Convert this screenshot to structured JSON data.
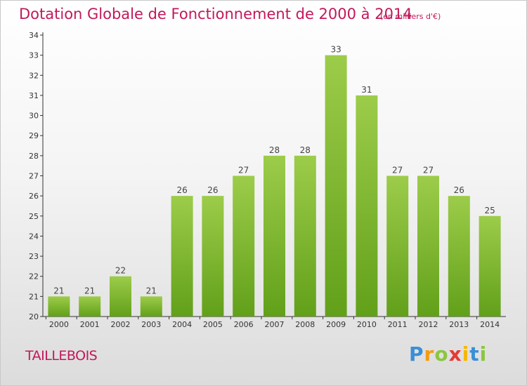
{
  "header": {
    "title": "Dotation Globale de Fonctionnement de 2000 à 2014",
    "unit": "(en milliers d'€)"
  },
  "footer": {
    "commune": "TAILLEBOIS",
    "brand": "Proxiti"
  },
  "colors": {
    "title": "#c2185b",
    "bar_top": "#9ccc4a",
    "bar_bottom": "#62a01a",
    "axis": "#333333"
  },
  "chart_data": {
    "type": "bar",
    "title": "Dotation Globale de Fonctionnement de 2000 à 2014",
    "categories": [
      "2000",
      "2001",
      "2002",
      "2003",
      "2004",
      "2005",
      "2006",
      "2007",
      "2008",
      "2009",
      "2010",
      "2011",
      "2012",
      "2013",
      "2014"
    ],
    "values": [
      21,
      21,
      22,
      21,
      26,
      26,
      27,
      28,
      28,
      33,
      31,
      27,
      27,
      26,
      25
    ],
    "ylim": [
      20,
      34
    ],
    "yticks": [
      20,
      21,
      22,
      23,
      24,
      25,
      26,
      27,
      28,
      29,
      30,
      31,
      32,
      33,
      34
    ],
    "grid": false,
    "data_labels": true
  }
}
